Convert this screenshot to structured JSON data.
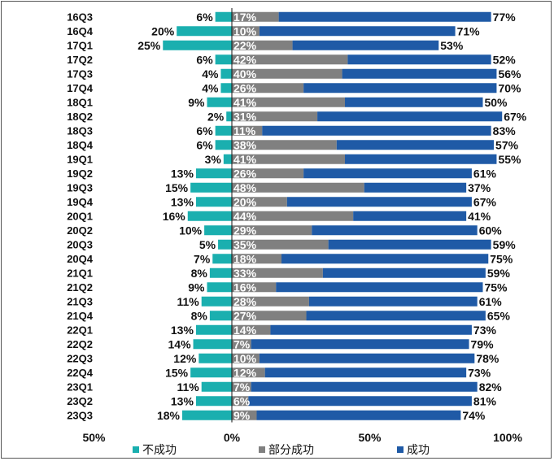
{
  "chart_data": {
    "type": "bar",
    "orientation": "horizontal",
    "stacked": true,
    "categories": [
      "16Q3",
      "16Q4",
      "17Q1",
      "17Q2",
      "17Q3",
      "17Q4",
      "18Q1",
      "18Q2",
      "18Q3",
      "18Q4",
      "19Q1",
      "19Q2",
      "19Q3",
      "19Q4",
      "20Q1",
      "20Q2",
      "20Q3",
      "20Q4",
      "21Q1",
      "21Q2",
      "21Q3",
      "21Q4",
      "22Q1",
      "22Q2",
      "22Q3",
      "22Q4",
      "23Q1",
      "23Q2",
      "23Q3"
    ],
    "series": [
      {
        "name": "不成功",
        "color": "#1AAFAF",
        "direction": "negative",
        "values": [
          6,
          20,
          25,
          6,
          4,
          4,
          9,
          2,
          6,
          6,
          3,
          13,
          15,
          13,
          16,
          10,
          5,
          7,
          8,
          9,
          11,
          8,
          13,
          14,
          12,
          15,
          11,
          13,
          18
        ]
      },
      {
        "name": "部分成功",
        "color": "#808080",
        "direction": "positive",
        "values": [
          17,
          10,
          22,
          42,
          40,
          26,
          41,
          31,
          11,
          38,
          41,
          26,
          48,
          20,
          44,
          29,
          35,
          18,
          33,
          16,
          28,
          27,
          14,
          7,
          10,
          12,
          7,
          6,
          9
        ]
      },
      {
        "name": "成功",
        "color": "#1F5AA6",
        "direction": "positive",
        "values": [
          77,
          71,
          53,
          52,
          56,
          70,
          50,
          67,
          83,
          57,
          55,
          61,
          37,
          67,
          41,
          60,
          59,
          75,
          59,
          75,
          61,
          65,
          73,
          79,
          78,
          73,
          82,
          81,
          74
        ]
      }
    ],
    "xaxis": {
      "ticks": [
        "50%",
        "0%",
        "50%",
        "100%"
      ],
      "range": [
        -50,
        100
      ]
    },
    "legend_position": "bottom",
    "grid": false
  }
}
